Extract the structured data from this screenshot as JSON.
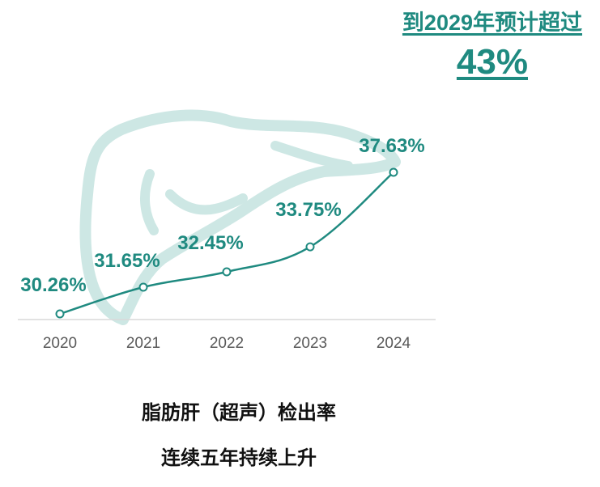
{
  "headline": {
    "line1": "到2029年预计超过",
    "line2": "43%"
  },
  "captions": {
    "line1": "脂肪肝（超声）检出率",
    "line2": "连续五年持续上升"
  },
  "colors": {
    "accent": "#1f8a80",
    "liver": "#cde7e4",
    "axis": "#d9d9d9",
    "tick": "#595959"
  },
  "chart_data": {
    "type": "line",
    "categories": [
      "2020",
      "2021",
      "2022",
      "2023",
      "2024"
    ],
    "values": [
      30.26,
      31.65,
      32.45,
      33.75,
      37.63
    ],
    "data_labels": [
      "30.26%",
      "31.65%",
      "32.45%",
      "33.75%",
      "37.63%"
    ],
    "xlabel": "",
    "ylabel": "",
    "grid": false,
    "legend": "none"
  }
}
